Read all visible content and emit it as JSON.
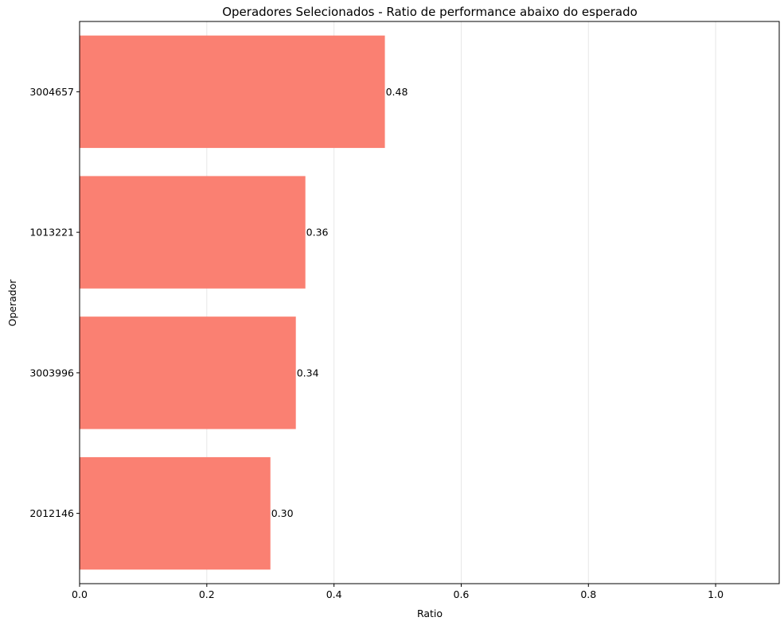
{
  "chart_data": {
    "type": "bar",
    "orientation": "horizontal",
    "title": "Operadores Selecionados - Ratio de performance abaixo do esperado",
    "xlabel": "Ratio",
    "ylabel": "Operador",
    "categories": [
      "3004657",
      "1013221",
      "3003996",
      "2012146"
    ],
    "values": [
      0.48,
      0.355,
      0.34,
      0.3
    ],
    "value_labels": [
      "0.48",
      "0.36",
      "0.34",
      "0.30"
    ],
    "xlim": [
      0,
      1.1
    ],
    "xticks": [
      0,
      0.2,
      0.4,
      0.6,
      0.8,
      1.0
    ],
    "xtick_labels": [
      "0.0",
      "0.2",
      "0.4",
      "0.6",
      "0.8",
      "1.0"
    ],
    "grid": "x-axis vertical lines",
    "bar_color": "#fa8072",
    "grid_color": "#e6e6e6"
  }
}
